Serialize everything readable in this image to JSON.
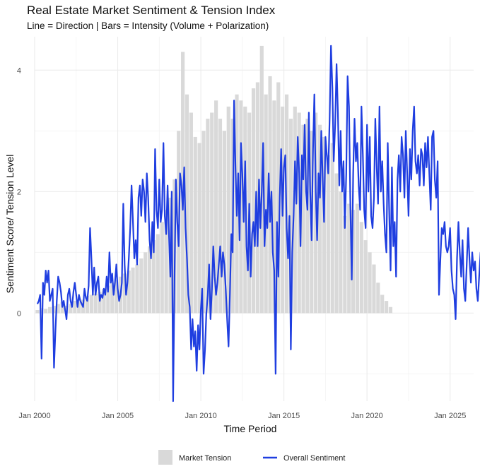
{
  "chart_data": {
    "type": "bar+line",
    "title": "Real Estate Market Sentiment & Tension Index",
    "subtitle": "Line = Direction | Bars = Intensity (Volume + Polarization)",
    "xlabel": "Time Period",
    "ylabel": "Sentiment Score/ Tension Level",
    "xlim": [
      "2000-01",
      "2026-06"
    ],
    "ylim": [
      -1.45,
      4.55
    ],
    "x_ticks": [
      "Jan 2000",
      "Jan 2005",
      "Jan 2010",
      "Jan 2015",
      "Jan 2020",
      "Jan 2025"
    ],
    "y_ticks": [
      0,
      2,
      4
    ],
    "grid": true,
    "legend_position": "bottom",
    "colors": {
      "tension": "#d9d9d9",
      "sentiment": "#1f3ee0",
      "grid": "#ebebeb"
    },
    "series": [
      {
        "name": "Market Tension",
        "kind": "bar",
        "x_start": "2000-03",
        "step": "quarter",
        "values": [
          0.05,
          0.08,
          0.07,
          0.1,
          0.12,
          0.15,
          0.18,
          0.12,
          0.15,
          0.2,
          0.18,
          0.22,
          0.28,
          0.3,
          0.32,
          0.35,
          0.4,
          0.45,
          0.5,
          0.55,
          0.6,
          0.65,
          0.7,
          0.75,
          0.8,
          0.9,
          1.0,
          1.1,
          1.2,
          1.3,
          1.5,
          1.7,
          1.9,
          2.2,
          3.0,
          4.3,
          3.6,
          3.3,
          2.9,
          2.8,
          3.0,
          3.2,
          3.3,
          3.5,
          3.2,
          3.0,
          3.4,
          3.2,
          3.6,
          3.5,
          3.4,
          3.3,
          3.7,
          3.8,
          4.4,
          3.6,
          3.9,
          3.5,
          3.8,
          3.4,
          3.6,
          3.2,
          3.4,
          3.3,
          3.1,
          3.2,
          3.0,
          3.3,
          3.1,
          2.9,
          2.6,
          2.8,
          2.3,
          2.0,
          1.6,
          1.8,
          1.7,
          1.8,
          1.5,
          1.2,
          1.0,
          0.8,
          0.5,
          0.3,
          0.2,
          0.1
        ]
      },
      {
        "name": "Overall Sentiment",
        "kind": "line",
        "x_start": "2000-03",
        "step": "month",
        "values": [
          0.15,
          0.2,
          0.3,
          -0.75,
          0.5,
          0.3,
          0.7,
          0.5,
          0.7,
          0.2,
          0.3,
          0.4,
          -0.9,
          -0.3,
          0.2,
          0.6,
          0.5,
          0.35,
          0.1,
          0.2,
          0.05,
          -0.1,
          0.3,
          0.4,
          0.2,
          0.1,
          0.35,
          0.5,
          0.3,
          0.1,
          0.3,
          0.2,
          0.15,
          0.1,
          0.4,
          0.25,
          0.2,
          0.45,
          1.4,
          0.9,
          0.3,
          0.75,
          0.3,
          0.5,
          0.6,
          0.2,
          0.3,
          0.25,
          0.4,
          0.3,
          0.6,
          0.35,
          1.0,
          0.5,
          0.65,
          0.3,
          0.5,
          0.8,
          0.4,
          0.2,
          0.3,
          0.5,
          1.8,
          0.8,
          0.3,
          0.5,
          0.9,
          1.4,
          2.1,
          1.5,
          0.9,
          1.2,
          0.8,
          1.9,
          2.1,
          1.6,
          2.2,
          2.0,
          1.5,
          2.3,
          1.9,
          1.2,
          0.9,
          1.5,
          1.0,
          2.7,
          1.7,
          1.4,
          2.2,
          1.5,
          1.7,
          2.8,
          1.6,
          1.3,
          2.1,
          1.3,
          0.6,
          2.0,
          -1.45,
          0.6,
          2.2,
          1.5,
          1.1,
          2.3,
          2.1,
          1.7,
          2.4,
          1.4,
          0.9,
          0.3,
          0.1,
          -0.6,
          -0.1,
          -0.55,
          -0.3,
          -0.95,
          -0.2,
          -0.6,
          0.05,
          0.4,
          -1.0,
          -0.6,
          0.0,
          0.3,
          0.8,
          -0.1,
          0.4,
          1.1,
          0.6,
          0.3,
          0.5,
          0.8,
          1.1,
          0.6,
          1.0,
          0.8,
          0.4,
          -0.1,
          -0.55,
          0.3,
          1.3,
          1.0,
          3.5,
          2.4,
          1.6,
          2.3,
          1.2,
          2.8,
          2.3,
          1.5,
          2.5,
          1.1,
          0.7,
          1.8,
          0.6,
          1.3,
          1.5,
          1.1,
          2.0,
          1.1,
          2.2,
          1.4,
          2.0,
          2.8,
          1.1,
          1.7,
          1.4,
          2.3,
          1.5,
          2.0,
          1.0,
          0.7,
          -1.0,
          1.5,
          0.6,
          1.9,
          2.7,
          1.6,
          2.4,
          2.6,
          1.4,
          0.9,
          1.6,
          -0.6,
          1.0,
          1.6,
          2.5,
          1.8,
          2.9,
          2.3,
          1.1,
          2.6,
          2.2,
          3.1,
          2.0,
          1.7,
          3.3,
          2.0,
          1.2,
          2.7,
          3.6,
          2.0,
          1.2,
          2.3,
          1.9,
          3.0,
          2.2,
          1.5,
          2.9,
          2.6,
          2.3,
          3.2,
          4.4,
          3.7,
          2.5,
          3.1,
          4.1,
          3.3,
          2.1,
          3.0,
          2.0,
          2.5,
          1.4,
          2.3,
          3.9,
          3.4,
          1.8,
          0.55,
          2.3,
          3.2,
          2.5,
          2.8,
          2.1,
          1.7,
          3.4,
          2.6,
          1.7,
          1.4,
          3.1,
          2.0,
          2.9,
          1.6,
          1.4,
          1.9,
          3.2,
          2.4,
          1.8,
          3.4,
          2.0,
          2.5,
          1.8,
          1.3,
          1.0,
          2.8,
          1.7,
          0.7,
          2.4,
          1.1,
          1.5,
          0.6,
          2.2,
          2.6,
          2.0,
          2.9,
          2.6,
          1.9,
          3.0,
          2.3,
          1.6,
          2.7,
          2.2,
          3.0,
          3.4,
          2.5,
          2.3,
          2.6,
          2.1,
          2.7,
          2.6,
          2.1,
          2.8,
          2.4,
          2.9,
          2.3,
          1.7,
          2.9,
          3.0,
          2.2,
          1.9,
          2.5,
          0.3,
          0.9,
          1.4,
          1.3,
          1.5,
          1.1,
          1.0,
          1.1,
          1.4,
          0.7,
          0.4,
          0.3,
          -0.1,
          0.9,
          1.5,
          1.0,
          0.6,
          1.2,
          0.4,
          0.2,
          0.8,
          1.4,
          0.9,
          0.5,
          1.0,
          0.7,
          0.85,
          0.4,
          0.2,
          0.6,
          1.0,
          0.7,
          0.0,
          0.3,
          1.5,
          1.2,
          1.0,
          0.7,
          0.5,
          0.2,
          -0.25,
          0.9,
          0.6,
          1.1,
          0.4,
          1.15,
          1.0,
          0.2,
          1.0,
          0.8,
          0.0,
          0.1
        ]
      }
    ]
  }
}
